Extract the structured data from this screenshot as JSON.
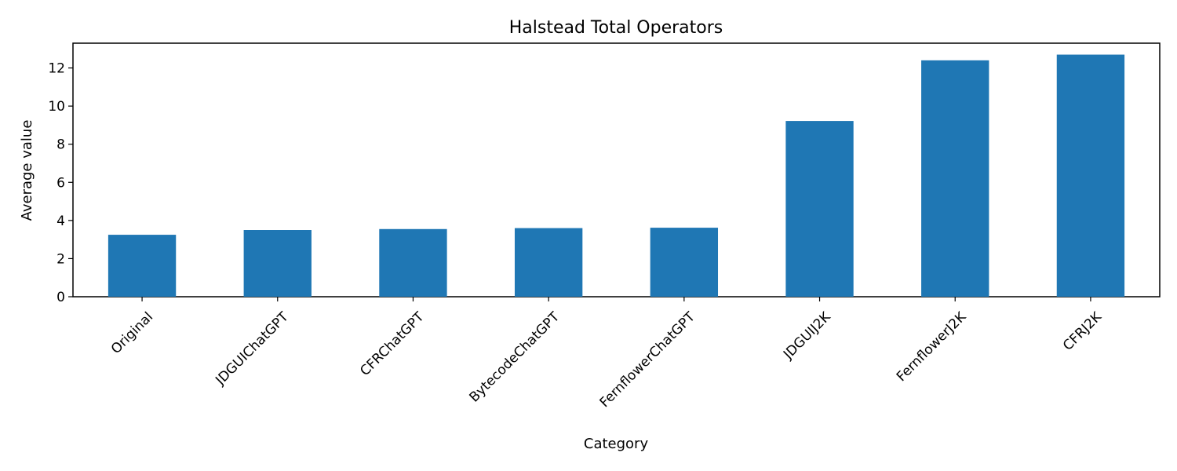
{
  "chart_data": {
    "type": "bar",
    "title": "Halstead Total Operators",
    "xlabel": "Category",
    "ylabel": "Average value",
    "categories": [
      "Original",
      "JDGUIChatGPT",
      "CFRChatGPT",
      "BytecodeChatGPT",
      "FernflowerChatGPT",
      "JDGUIJ2K",
      "FernflowerJ2K",
      "CFRJ2K"
    ],
    "values": [
      3.25,
      3.5,
      3.55,
      3.6,
      3.62,
      9.22,
      12.4,
      12.7
    ],
    "ylim": [
      0,
      13.3
    ],
    "yticks": [
      0,
      2,
      4,
      6,
      8,
      10,
      12
    ],
    "bar_color": "#1f77b4",
    "grid": false,
    "legend": "none"
  }
}
